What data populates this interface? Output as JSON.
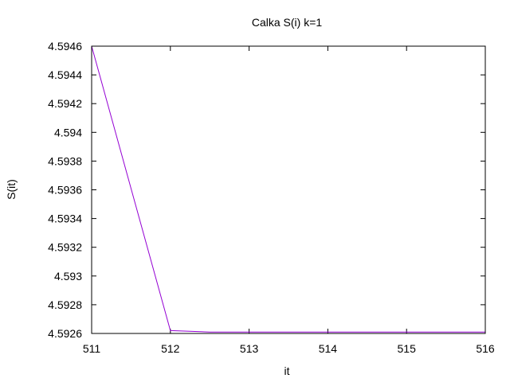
{
  "chart_data": {
    "type": "line",
    "title": "Calka S(i) k=1",
    "xlabel": "it",
    "ylabel": "S(it)",
    "xlim": [
      511,
      516
    ],
    "ylim": [
      4.5926,
      4.5946
    ],
    "x_ticks": [
      511,
      512,
      513,
      514,
      515,
      516
    ],
    "x_tick_labels": [
      "511",
      "512",
      "513",
      "514",
      "515",
      "516"
    ],
    "y_ticks": [
      4.5926,
      4.5928,
      4.593,
      4.5932,
      4.5934,
      4.5936,
      4.5938,
      4.594,
      4.5942,
      4.5944,
      4.5946
    ],
    "y_tick_labels": [
      "4.5926",
      "4.5928",
      "4.593",
      "4.5932",
      "4.5934",
      "4.5936",
      "4.5938",
      "4.594",
      "4.5942",
      "4.5944",
      "4.5946"
    ],
    "grid": false,
    "legend": false,
    "series": [
      {
        "color": "#9400d3",
        "x": [
          511,
          512,
          512.5,
          513,
          514,
          515,
          516
        ],
        "y": [
          4.5946,
          4.59262,
          4.59261,
          4.59261,
          4.59261,
          4.59261,
          4.59261
        ]
      }
    ]
  }
}
